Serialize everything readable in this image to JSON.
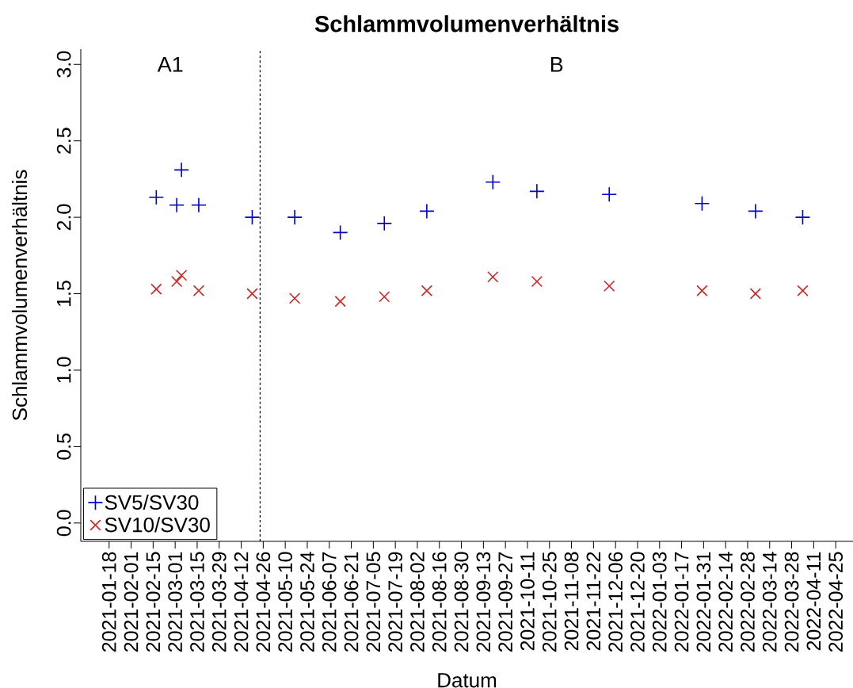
{
  "chart_data": {
    "type": "scatter",
    "title": "Schlammvolumenverhältnis",
    "xlabel": "Datum",
    "ylabel": "Schlammvolumenverhältnis",
    "x": [
      "2021-02-17",
      "2021-03-02",
      "2021-03-05",
      "2021-03-16",
      "2021-04-19",
      "2021-05-16",
      "2021-06-14",
      "2021-07-12",
      "2021-08-08",
      "2021-09-19",
      "2021-10-17",
      "2021-12-02",
      "2022-01-30",
      "2022-03-05",
      "2022-04-04"
    ],
    "series": [
      {
        "name": "SV5/SV30",
        "color": "#0000cd",
        "marker": "plus",
        "values": [
          2.13,
          2.08,
          2.31,
          2.08,
          2.0,
          2.0,
          1.9,
          1.96,
          2.04,
          2.23,
          2.17,
          2.15,
          2.09,
          2.04,
          2.0
        ]
      },
      {
        "name": "SV10/SV30",
        "color": "#cd2626",
        "marker": "cross",
        "values": [
          1.53,
          1.58,
          1.62,
          1.52,
          1.5,
          1.47,
          1.45,
          1.48,
          1.52,
          1.61,
          1.58,
          1.55,
          1.52,
          1.5,
          1.52
        ]
      }
    ],
    "xlim": [
      "2020-12-31",
      "2022-05-06"
    ],
    "xticks": [
      "2021-01-18",
      "2021-02-01",
      "2021-02-15",
      "2021-03-01",
      "2021-03-15",
      "2021-03-29",
      "2021-04-12",
      "2021-04-26",
      "2021-05-10",
      "2021-05-24",
      "2021-06-07",
      "2021-06-21",
      "2021-07-05",
      "2021-07-19",
      "2021-08-02",
      "2021-08-16",
      "2021-08-30",
      "2021-09-13",
      "2021-09-27",
      "2021-10-11",
      "2021-10-25",
      "2021-11-08",
      "2021-11-22",
      "2021-12-06",
      "2021-12-20",
      "2022-01-03",
      "2022-01-17",
      "2022-01-31",
      "2022-02-14",
      "2022-02-28",
      "2022-03-14",
      "2022-03-28",
      "2022-04-11",
      "2022-04-25"
    ],
    "ylim": [
      -0.12,
      3.1
    ],
    "yticks": [
      {
        "value": 0,
        "label": "0.0"
      },
      {
        "value": 0.5,
        "label": "0.5"
      },
      {
        "value": 1,
        "label": "1.0"
      },
      {
        "value": 1.5,
        "label": "1.5"
      },
      {
        "value": 2,
        "label": "2.0"
      },
      {
        "value": 2.5,
        "label": "2.5"
      },
      {
        "value": 3,
        "label": "3.0"
      }
    ],
    "ref_lines": [
      {
        "axis": "x",
        "value": "2021-04-24",
        "color": "#000000",
        "line_style": "dashed"
      }
    ],
    "annotations": [
      "A1",
      "B"
    ],
    "legend": "bottom left",
    "grid": false
  }
}
